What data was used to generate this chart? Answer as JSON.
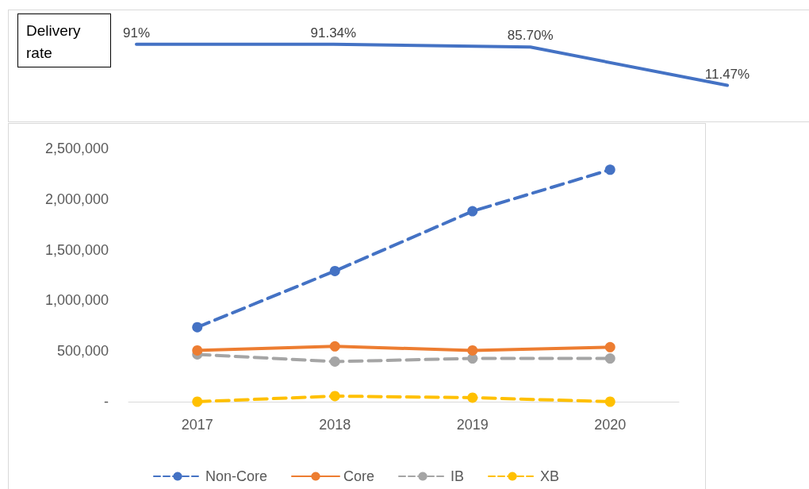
{
  "chart_data": [
    {
      "type": "line",
      "title": "Delivery rate",
      "categories": [
        null,
        null,
        null,
        null
      ],
      "color": "#4472c4",
      "values": [
        91,
        91.34,
        85.7,
        11.47
      ],
      "value_labels": [
        "91%",
        "91.34%",
        "85.70%",
        "11.47%"
      ],
      "marker": "none",
      "grid": false,
      "legend": false
    },
    {
      "type": "line",
      "categories": [
        "2017",
        "2018",
        "2019",
        "2020"
      ],
      "ylim": [
        0,
        2500000
      ],
      "yticks": [
        {
          "value": 0,
          "label": "-"
        },
        {
          "value": 500000,
          "label": "500,000"
        },
        {
          "value": 1000000,
          "label": "1,000,000"
        },
        {
          "value": 1500000,
          "label": "1,500,000"
        },
        {
          "value": 2000000,
          "label": "2,000,000"
        },
        {
          "value": 2500000,
          "label": "2,500,000"
        }
      ],
      "grid": false,
      "legend": "bottom",
      "marker": "circle",
      "series": [
        {
          "name": "Non-Core",
          "color": "#4472c4",
          "line_style": "dashed",
          "values": [
            735000,
            1290000,
            1880000,
            2290000
          ]
        },
        {
          "name": "Core",
          "color": "#ed7d31",
          "line_style": "solid",
          "values": [
            506000,
            546000,
            506000,
            538000
          ]
        },
        {
          "name": "IB",
          "color": "#a5a5a5",
          "line_style": "dashed",
          "values": [
            467000,
            396000,
            427000,
            427000
          ]
        },
        {
          "name": "XB",
          "color": "#ffc000",
          "line_style": "dashed",
          "values": [
            0,
            55000,
            40000,
            0
          ]
        }
      ]
    }
  ]
}
